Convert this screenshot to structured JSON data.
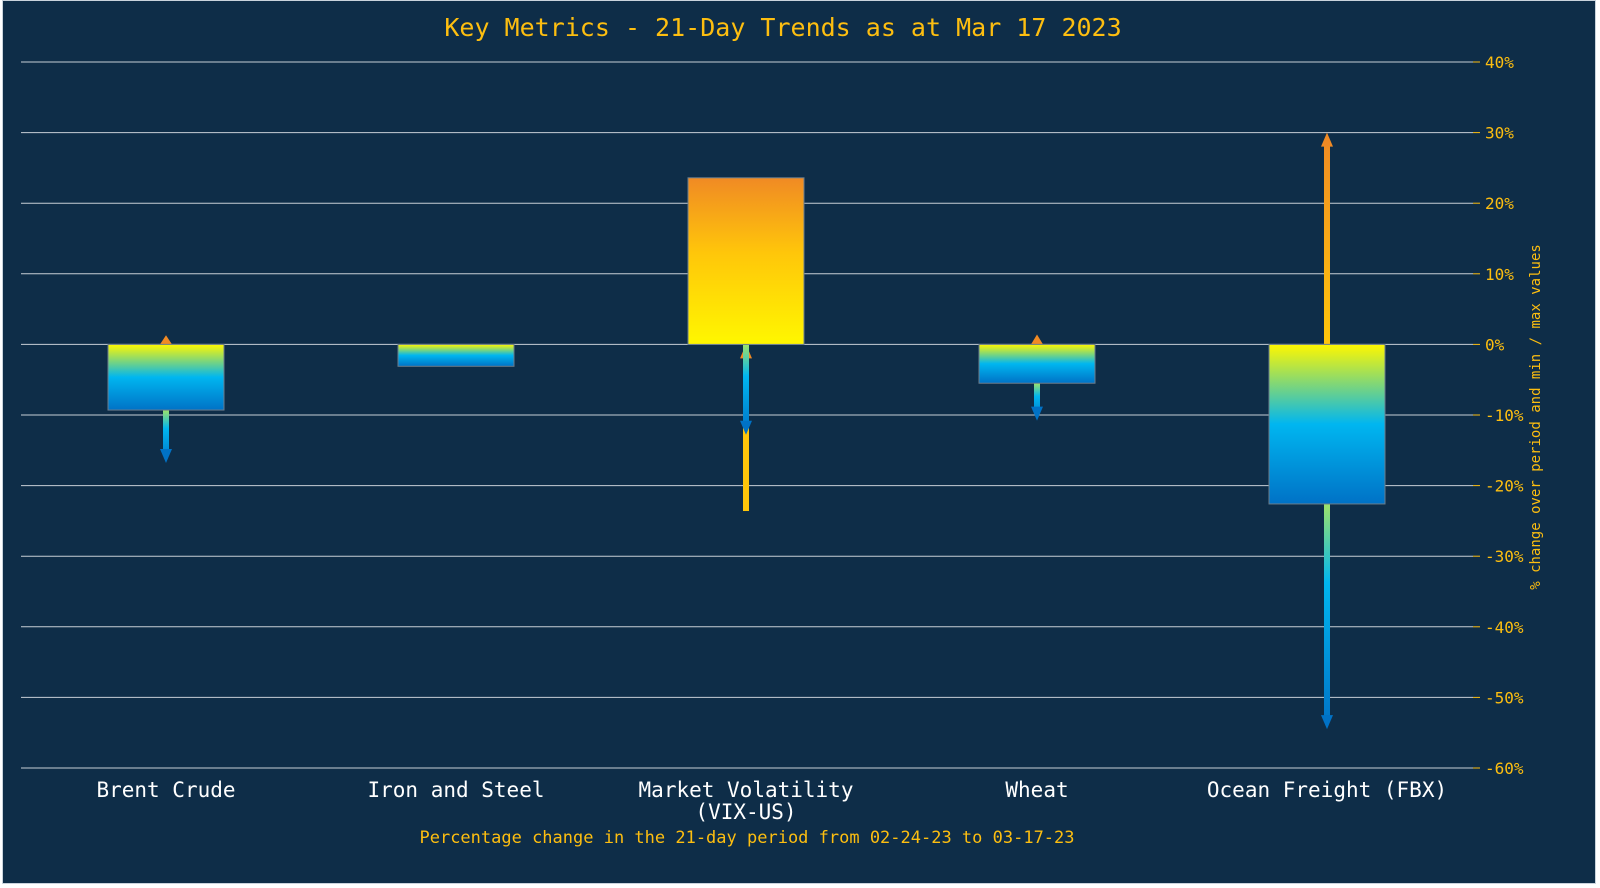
{
  "colors": {
    "background": "#0e2d48",
    "gridline": "#c7cfd6",
    "accent_text": "#fdbe10",
    "category_text": "#ffffff",
    "gradient_top": "#f08a24",
    "gradient_mid_warm": "#ffc60a",
    "gradient_mid_yellow": "#fff700",
    "gradient_mid_cool": "#00b6f0",
    "gradient_bottom": "#0072c6"
  },
  "chart_data": {
    "type": "bar",
    "title": "Key Metrics - 21-Day Trends as at Mar 17 2023",
    "xlabel": "Percentage change in the 21-day period from 02-24-23 to 03-17-23",
    "ylabel": "% change over period and min / max values",
    "ylim": [
      -60,
      40
    ],
    "yticks": [
      40,
      30,
      20,
      10,
      0,
      -10,
      -20,
      -30,
      -40,
      -50,
      -60
    ],
    "ytick_labels": [
      "40%",
      "30%",
      "20%",
      "10%",
      "0%",
      "-10%",
      "-20%",
      "-30%",
      "-40%",
      "-50%",
      "-60%"
    ],
    "grid": true,
    "y_axis_side": "right",
    "categories": [
      [
        "Brent Crude"
      ],
      [
        "Iron and Steel"
      ],
      [
        "Market Volatility",
        "(VIX-US)"
      ],
      [
        "Wheat"
      ],
      [
        "Ocean Freight (FBX)"
      ]
    ],
    "series": [
      {
        "values": [
          -9.3,
          -3.1,
          23.6,
          -5.5,
          -22.6
        ]
      },
      {
        "values": [
          1.3,
          0,
          0,
          1.4,
          30
        ]
      },
      {
        "values": [
          -16.8,
          -3.1,
          -12.8,
          -10.8,
          -54.5
        ]
      }
    ]
  }
}
